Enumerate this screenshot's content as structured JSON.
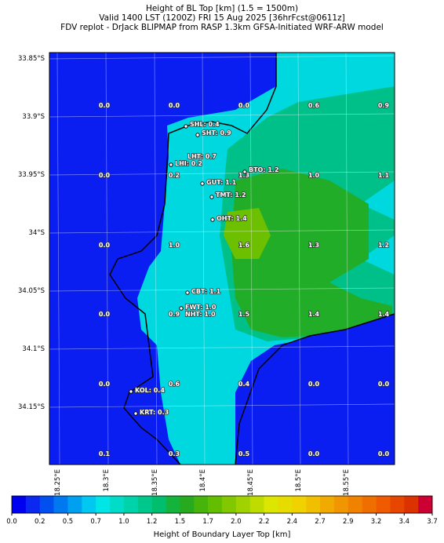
{
  "header": {
    "title_lines": [
      "Height of BL Top [km] (1.5 = 1500m)",
      "Valid 1400 LST (1200Z) FRI 15 Aug 2025 [36hrFcst@0611z]",
      "FDV replot - DrJack BLIPMAP from RASP 1.3km GFSA-Initiated WRF-ARW model"
    ]
  },
  "map": {
    "lat_labels": [
      "33.85°S",
      "33.9°S",
      "33.95°S",
      "34°S",
      "34.05°S",
      "34.1°S",
      "34.15°S"
    ],
    "lon_labels": [
      "18.25°E",
      "18.3°E",
      "18.35°E",
      "18.4°E",
      "18.45°E",
      "18.5°E",
      "18.55°E"
    ],
    "grid_values": [
      [
        "0.0",
        "0.0",
        "0.0",
        "0.6",
        "0.9"
      ],
      [
        "0.0",
        "0.2",
        "1.3",
        "1.0",
        "1.1"
      ],
      [
        "0.0",
        "1.0",
        "1.6",
        "1.3",
        "1.2"
      ],
      [
        "0.0",
        "0.9",
        "1.5",
        "1.4",
        "1.4"
      ],
      [
        "0.0",
        "0.6",
        "0.4",
        "0.0",
        "0.0"
      ],
      [
        "0.1",
        "0.3",
        "0.5",
        "0.0",
        "0.0"
      ]
    ],
    "stations": [
      "SHL: 0.4",
      "SHT: 0.9",
      "LHT: 0.7",
      "LHI: 0.2",
      "BTO: 1.2",
      "GUT: 1.1",
      "TMT: 1.2",
      "OHT: 1.4",
      "CBT: 1.1",
      "FWT: 1.0",
      "NHT: 1.0",
      "KOL: 0.4",
      "KRT: 0.3"
    ]
  },
  "colorbar": {
    "label": "Height of Boundary Layer Top [km]",
    "tick_labels": [
      "0.0",
      "0.2",
      "0.5",
      "0.7",
      "1.0",
      "1.2",
      "1.5",
      "1.7",
      "2.0",
      "2.2",
      "2.4",
      "2.7",
      "2.9",
      "3.2",
      "3.4",
      "3.7"
    ],
    "colors": [
      "#0000f0",
      "#0a28f0",
      "#0050f0",
      "#0078f0",
      "#00a0f0",
      "#00c8f0",
      "#00e6e6",
      "#00dcc8",
      "#00d2aa",
      "#00c88c",
      "#00be6e",
      "#14b43c",
      "#28aa1e",
      "#46b40a",
      "#64be00",
      "#82c800",
      "#a0d200",
      "#bedc00",
      "#dce600",
      "#e6dc00",
      "#f0d200",
      "#f0c000",
      "#f0aa00",
      "#f09600",
      "#f08200",
      "#f06e00",
      "#f05a00",
      "#e64600",
      "#dc3200",
      "#cc0033"
    ]
  }
}
